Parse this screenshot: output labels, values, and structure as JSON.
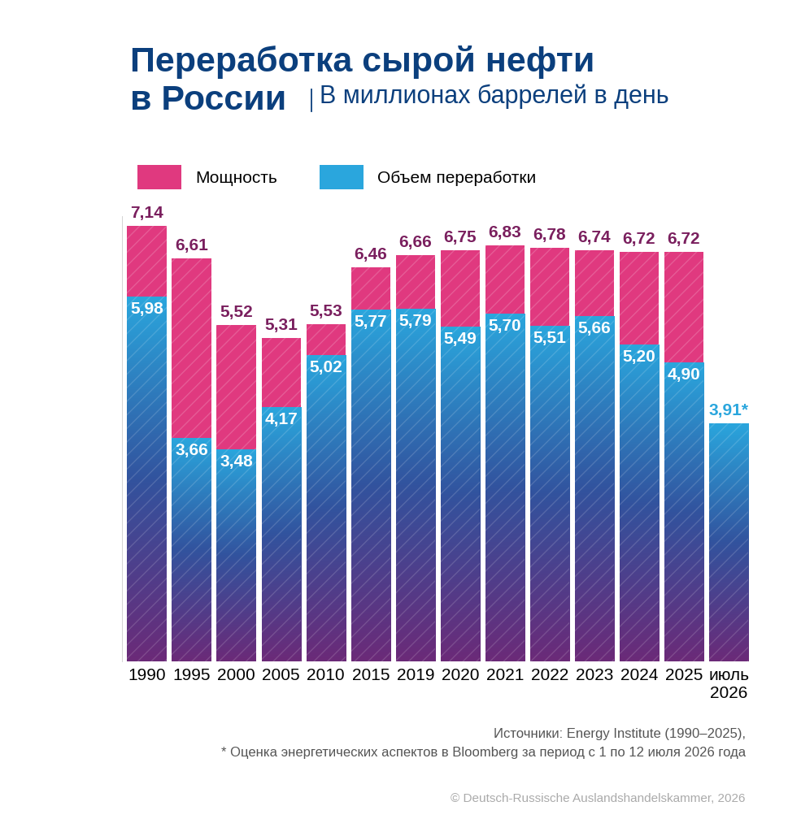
{
  "chart_data": {
    "type": "bar",
    "title": "Переработка сырой нефти\nв России",
    "subtitle": "В миллионах баррелей в день",
    "categories": [
      "1990",
      "1995",
      "2000",
      "2005",
      "2010",
      "2015",
      "2019",
      "2020",
      "2021",
      "2022",
      "2023",
      "2024",
      "2025",
      "июль 2026"
    ],
    "series": [
      {
        "name": "Мощность",
        "color": "#e0397f",
        "values": [
          7.14,
          6.61,
          5.52,
          5.31,
          5.53,
          6.46,
          6.66,
          6.75,
          6.83,
          6.78,
          6.74,
          6.72,
          6.72,
          null
        ],
        "value_labels": [
          "7,14",
          "6,61",
          "5,52",
          "5,31",
          "5,53",
          "6,46",
          "6,66",
          "6,75",
          "6,83",
          "6,78",
          "6,74",
          "6,72",
          "6,72",
          null
        ]
      },
      {
        "name": "Объем переработки",
        "color": "#2aa6dd",
        "values": [
          5.98,
          3.66,
          3.48,
          4.17,
          5.02,
          5.77,
          5.79,
          5.49,
          5.7,
          5.51,
          5.66,
          5.2,
          4.9,
          3.91
        ],
        "value_labels": [
          "5,98",
          "3,66",
          "3,48",
          "4,17",
          "5,02",
          "5,77",
          "5,79",
          "5,49",
          "5,70",
          "5,51",
          "5,66",
          "5,20",
          "4,90",
          "3,91*"
        ]
      }
    ],
    "stacked": false,
    "data_labels": true,
    "tick_labels": "x",
    "grid": false,
    "legend": "upper left",
    "ylim": [
      0,
      7.3
    ],
    "sources": [
      "Источники: Energy Institute (1990–2025),",
      "* Оценка энергетических аспектов в Bloomberg за период с 1 по 12 июля 2026 года"
    ],
    "copyright": "© Deutsch-Russische Auslandshandelskammer, 2026"
  }
}
